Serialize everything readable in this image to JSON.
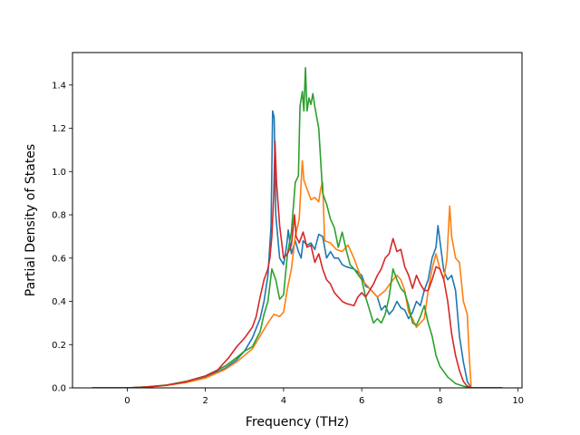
{
  "chart_data": {
    "type": "line",
    "title": "",
    "xlabel": "Frequency (THz)",
    "ylabel": "Partial Density of States",
    "xlim": [
      -1.4,
      10.1
    ],
    "ylim": [
      0,
      1.55
    ],
    "xticks": [
      0,
      2,
      4,
      6,
      8,
      10
    ],
    "xtick_labels": [
      "0",
      "2",
      "4",
      "6",
      "8",
      "10"
    ],
    "yticks": [
      0.0,
      0.2,
      0.4,
      0.6,
      0.8,
      1.0,
      1.2,
      1.4
    ],
    "ytick_labels": [
      "0.0",
      "0.2",
      "0.4",
      "0.6",
      "0.8",
      "1.0",
      "1.2",
      "1.4"
    ],
    "grid": false,
    "legend": "none",
    "series": [
      {
        "color": "#1f77b4",
        "points": [
          [
            -0.9,
            0
          ],
          [
            0,
            0
          ],
          [
            0.5,
            0.004
          ],
          [
            1,
            0.012
          ],
          [
            1.5,
            0.027
          ],
          [
            2,
            0.05
          ],
          [
            2.5,
            0.09
          ],
          [
            2.8,
            0.13
          ],
          [
            3,
            0.17
          ],
          [
            3.2,
            0.23
          ],
          [
            3.4,
            0.32
          ],
          [
            3.5,
            0.4
          ],
          [
            3.6,
            0.52
          ],
          [
            3.68,
            0.75
          ],
          [
            3.72,
            1.28
          ],
          [
            3.76,
            1.25
          ],
          [
            3.8,
            0.8
          ],
          [
            3.9,
            0.6
          ],
          [
            4,
            0.57
          ],
          [
            4.08,
            0.66
          ],
          [
            4.12,
            0.73
          ],
          [
            4.2,
            0.62
          ],
          [
            4.3,
            0.68
          ],
          [
            4.38,
            0.63
          ],
          [
            4.45,
            0.6
          ],
          [
            4.5,
            0.68
          ],
          [
            4.6,
            0.66
          ],
          [
            4.7,
            0.67
          ],
          [
            4.8,
            0.64
          ],
          [
            4.9,
            0.71
          ],
          [
            5,
            0.7
          ],
          [
            5.1,
            0.6
          ],
          [
            5.2,
            0.63
          ],
          [
            5.3,
            0.6
          ],
          [
            5.4,
            0.6
          ],
          [
            5.5,
            0.57
          ],
          [
            5.6,
            0.56
          ],
          [
            5.8,
            0.55
          ],
          [
            6,
            0.52
          ],
          [
            6.1,
            0.47
          ],
          [
            6.2,
            0.46
          ],
          [
            6.3,
            0.44
          ],
          [
            6.4,
            0.42
          ],
          [
            6.5,
            0.36
          ],
          [
            6.6,
            0.38
          ],
          [
            6.7,
            0.34
          ],
          [
            6.8,
            0.36
          ],
          [
            6.9,
            0.4
          ],
          [
            7,
            0.37
          ],
          [
            7.1,
            0.36
          ],
          [
            7.2,
            0.32
          ],
          [
            7.3,
            0.35
          ],
          [
            7.4,
            0.4
          ],
          [
            7.5,
            0.38
          ],
          [
            7.6,
            0.45
          ],
          [
            7.7,
            0.5
          ],
          [
            7.8,
            0.6
          ],
          [
            7.9,
            0.65
          ],
          [
            7.95,
            0.75
          ],
          [
            8,
            0.68
          ],
          [
            8.1,
            0.54
          ],
          [
            8.2,
            0.5
          ],
          [
            8.3,
            0.52
          ],
          [
            8.4,
            0.45
          ],
          [
            8.5,
            0.24
          ],
          [
            8.6,
            0.12
          ],
          [
            8.7,
            0.03
          ],
          [
            8.8,
            0
          ],
          [
            9.6,
            0
          ]
        ]
      },
      {
        "color": "#ff7f0e",
        "points": [
          [
            -0.9,
            0
          ],
          [
            0,
            0
          ],
          [
            0.5,
            0.004
          ],
          [
            1,
            0.011
          ],
          [
            1.5,
            0.024
          ],
          [
            2,
            0.045
          ],
          [
            2.5,
            0.085
          ],
          [
            2.8,
            0.12
          ],
          [
            3,
            0.15
          ],
          [
            3.2,
            0.18
          ],
          [
            3.4,
            0.24
          ],
          [
            3.6,
            0.3
          ],
          [
            3.75,
            0.34
          ],
          [
            3.9,
            0.33
          ],
          [
            4,
            0.35
          ],
          [
            4.1,
            0.46
          ],
          [
            4.2,
            0.55
          ],
          [
            4.3,
            0.7
          ],
          [
            4.4,
            0.78
          ],
          [
            4.48,
            1.05
          ],
          [
            4.52,
            0.96
          ],
          [
            4.6,
            0.92
          ],
          [
            4.7,
            0.87
          ],
          [
            4.8,
            0.88
          ],
          [
            4.9,
            0.86
          ],
          [
            4.95,
            0.92
          ],
          [
            5,
            0.95
          ],
          [
            5.05,
            0.68
          ],
          [
            5.2,
            0.67
          ],
          [
            5.35,
            0.64
          ],
          [
            5.5,
            0.63
          ],
          [
            5.65,
            0.66
          ],
          [
            5.8,
            0.6
          ],
          [
            5.9,
            0.55
          ],
          [
            6,
            0.5
          ],
          [
            6.2,
            0.46
          ],
          [
            6.4,
            0.42
          ],
          [
            6.6,
            0.45
          ],
          [
            6.8,
            0.5
          ],
          [
            6.9,
            0.52
          ],
          [
            7,
            0.5
          ],
          [
            7.1,
            0.45
          ],
          [
            7.2,
            0.35
          ],
          [
            7.3,
            0.32
          ],
          [
            7.4,
            0.28
          ],
          [
            7.5,
            0.3
          ],
          [
            7.6,
            0.32
          ],
          [
            7.7,
            0.45
          ],
          [
            7.8,
            0.55
          ],
          [
            7.9,
            0.62
          ],
          [
            8,
            0.55
          ],
          [
            8.1,
            0.5
          ],
          [
            8.18,
            0.6
          ],
          [
            8.25,
            0.84
          ],
          [
            8.3,
            0.7
          ],
          [
            8.4,
            0.6
          ],
          [
            8.5,
            0.58
          ],
          [
            8.6,
            0.4
          ],
          [
            8.7,
            0.34
          ],
          [
            8.75,
            0.15
          ],
          [
            8.8,
            0
          ],
          [
            9.6,
            0
          ]
        ]
      },
      {
        "color": "#2ca02c",
        "points": [
          [
            -0.9,
            0
          ],
          [
            0,
            0
          ],
          [
            0.5,
            0.005
          ],
          [
            1,
            0.013
          ],
          [
            1.5,
            0.03
          ],
          [
            2,
            0.055
          ],
          [
            2.5,
            0.1
          ],
          [
            2.8,
            0.14
          ],
          [
            3,
            0.17
          ],
          [
            3.2,
            0.19
          ],
          [
            3.4,
            0.26
          ],
          [
            3.5,
            0.34
          ],
          [
            3.6,
            0.4
          ],
          [
            3.7,
            0.55
          ],
          [
            3.8,
            0.5
          ],
          [
            3.9,
            0.41
          ],
          [
            4,
            0.43
          ],
          [
            4.1,
            0.62
          ],
          [
            4.2,
            0.72
          ],
          [
            4.3,
            0.95
          ],
          [
            4.38,
            0.98
          ],
          [
            4.42,
            1.3
          ],
          [
            4.48,
            1.37
          ],
          [
            4.52,
            1.28
          ],
          [
            4.56,
            1.48
          ],
          [
            4.6,
            1.28
          ],
          [
            4.65,
            1.34
          ],
          [
            4.7,
            1.31
          ],
          [
            4.75,
            1.36
          ],
          [
            4.8,
            1.3
          ],
          [
            4.9,
            1.2
          ],
          [
            5,
            0.9
          ],
          [
            5.1,
            0.85
          ],
          [
            5.2,
            0.78
          ],
          [
            5.3,
            0.74
          ],
          [
            5.4,
            0.65
          ],
          [
            5.5,
            0.72
          ],
          [
            5.6,
            0.64
          ],
          [
            5.7,
            0.57
          ],
          [
            5.8,
            0.55
          ],
          [
            6,
            0.5
          ],
          [
            6.1,
            0.42
          ],
          [
            6.2,
            0.36
          ],
          [
            6.3,
            0.3
          ],
          [
            6.4,
            0.32
          ],
          [
            6.5,
            0.3
          ],
          [
            6.6,
            0.34
          ],
          [
            6.7,
            0.42
          ],
          [
            6.8,
            0.55
          ],
          [
            6.9,
            0.5
          ],
          [
            7,
            0.46
          ],
          [
            7.1,
            0.44
          ],
          [
            7.2,
            0.38
          ],
          [
            7.3,
            0.3
          ],
          [
            7.4,
            0.29
          ],
          [
            7.5,
            0.33
          ],
          [
            7.6,
            0.38
          ],
          [
            7.7,
            0.3
          ],
          [
            7.8,
            0.24
          ],
          [
            7.9,
            0.15
          ],
          [
            8,
            0.1
          ],
          [
            8.2,
            0.05
          ],
          [
            8.4,
            0.02
          ],
          [
            8.6,
            0.008
          ],
          [
            8.8,
            0
          ],
          [
            9.6,
            0
          ]
        ]
      },
      {
        "color": "#d62728",
        "points": [
          [
            -0.9,
            0
          ],
          [
            0,
            0
          ],
          [
            0.5,
            0.004
          ],
          [
            1,
            0.012
          ],
          [
            1.5,
            0.028
          ],
          [
            2,
            0.055
          ],
          [
            2.3,
            0.08
          ],
          [
            2.6,
            0.14
          ],
          [
            2.8,
            0.19
          ],
          [
            3,
            0.23
          ],
          [
            3.2,
            0.28
          ],
          [
            3.3,
            0.33
          ],
          [
            3.4,
            0.42
          ],
          [
            3.5,
            0.5
          ],
          [
            3.6,
            0.55
          ],
          [
            3.65,
            0.6
          ],
          [
            3.7,
            0.7
          ],
          [
            3.75,
            0.9
          ],
          [
            3.78,
            1.14
          ],
          [
            3.82,
            0.95
          ],
          [
            3.9,
            0.75
          ],
          [
            4,
            0.6
          ],
          [
            4.1,
            0.62
          ],
          [
            4.2,
            0.66
          ],
          [
            4.28,
            0.8
          ],
          [
            4.32,
            0.7
          ],
          [
            4.4,
            0.67
          ],
          [
            4.5,
            0.72
          ],
          [
            4.6,
            0.65
          ],
          [
            4.7,
            0.66
          ],
          [
            4.8,
            0.58
          ],
          [
            4.9,
            0.62
          ],
          [
            5,
            0.55
          ],
          [
            5.1,
            0.5
          ],
          [
            5.2,
            0.48
          ],
          [
            5.3,
            0.44
          ],
          [
            5.4,
            0.42
          ],
          [
            5.5,
            0.4
          ],
          [
            5.6,
            0.39
          ],
          [
            5.8,
            0.38
          ],
          [
            5.9,
            0.42
          ],
          [
            6,
            0.44
          ],
          [
            6.1,
            0.42
          ],
          [
            6.2,
            0.45
          ],
          [
            6.3,
            0.48
          ],
          [
            6.4,
            0.52
          ],
          [
            6.5,
            0.55
          ],
          [
            6.6,
            0.6
          ],
          [
            6.7,
            0.62
          ],
          [
            6.8,
            0.69
          ],
          [
            6.9,
            0.63
          ],
          [
            7,
            0.64
          ],
          [
            7.1,
            0.56
          ],
          [
            7.2,
            0.52
          ],
          [
            7.3,
            0.46
          ],
          [
            7.4,
            0.52
          ],
          [
            7.5,
            0.48
          ],
          [
            7.6,
            0.45
          ],
          [
            7.7,
            0.45
          ],
          [
            7.8,
            0.5
          ],
          [
            7.9,
            0.56
          ],
          [
            8,
            0.55
          ],
          [
            8.1,
            0.5
          ],
          [
            8.2,
            0.4
          ],
          [
            8.3,
            0.25
          ],
          [
            8.4,
            0.15
          ],
          [
            8.5,
            0.08
          ],
          [
            8.6,
            0.03
          ],
          [
            8.7,
            0.008
          ],
          [
            8.8,
            0
          ],
          [
            9.6,
            0
          ]
        ]
      }
    ]
  }
}
